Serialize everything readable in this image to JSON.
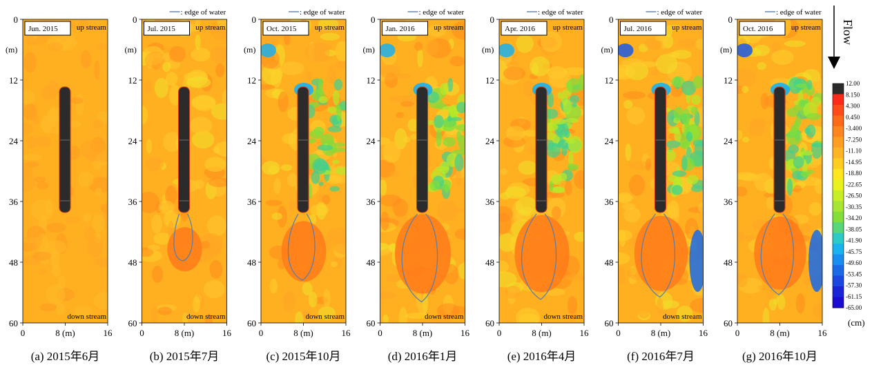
{
  "figure": {
    "flow_label": "Flow",
    "unit_label": "(cm)",
    "axis_unit_label": "(m)",
    "x_axis_mid_label": "8 (m)",
    "legend_line_label": ": edge of water",
    "upstream_label": "up stream",
    "downstream_label": "down stream"
  },
  "colorbar": {
    "ticks": [
      "12.00",
      "8.150",
      "4.300",
      "0.450",
      "-3.400",
      "-7.250",
      "-11.10",
      "-14.95",
      "-18.80",
      "-22.65",
      "-26.50",
      "-30.35",
      "-34.20",
      "-38.05",
      "-41.90",
      "-45.75",
      "-49.60",
      "-53.45",
      "-57.30",
      "-61.15",
      "-65.00"
    ],
    "colors": [
      "#2b2b2b",
      "#ff2a1a",
      "#ff4a1a",
      "#ff6a1a",
      "#ff861e",
      "#ff9e22",
      "#ffb426",
      "#ffcc22",
      "#ffe61e",
      "#eaf21e",
      "#c8ee28",
      "#a6e632",
      "#84de3a",
      "#58d67a",
      "#2ecac8",
      "#1cb2ee",
      "#1a8ef0",
      "#1a6ae8",
      "#1a48e0",
      "#1a26d6",
      "#1a0cd0"
    ]
  },
  "chart_data": [
    {
      "type": "heatmap",
      "panel": "(a)",
      "date_box": "Jun. 2015",
      "caption": "(a) 2015年6月",
      "xlim": [
        0,
        16
      ],
      "ylim": [
        0,
        60
      ],
      "x_ticks": [
        "0",
        "8 (m)",
        "16"
      ],
      "y_ticks": [
        "0",
        "12",
        "24",
        "36",
        "48",
        "60"
      ],
      "scour_region": false,
      "show_edge_legend": false,
      "show_downstream": true
    },
    {
      "type": "heatmap",
      "panel": "(b)",
      "date_box": "Jul. 2015",
      "caption": "(b) 2015年7月",
      "xlim": [
        0,
        16
      ],
      "ylim": [
        0,
        60
      ],
      "x_ticks": [
        "0",
        "8 (m)",
        "16"
      ],
      "y_ticks": [
        "0",
        "12",
        "24",
        "36",
        "48",
        "60"
      ],
      "scour_region": true,
      "show_edge_legend": true,
      "show_downstream": true
    },
    {
      "type": "heatmap",
      "panel": "(c)",
      "date_box": "Oct. 2015",
      "caption": "(c) 2015年10月",
      "xlim": [
        0,
        16
      ],
      "ylim": [
        0,
        60
      ],
      "x_ticks": [
        "0",
        "8 (m)",
        "16"
      ],
      "y_ticks": [
        "0",
        "12",
        "24",
        "36",
        "48",
        "60"
      ],
      "scour_region": true,
      "show_edge_legend": true,
      "show_downstream": true
    },
    {
      "type": "heatmap",
      "panel": "(d)",
      "date_box": "Jan. 2016",
      "caption": "(d) 2016年1月",
      "xlim": [
        0,
        16
      ],
      "ylim": [
        0,
        60
      ],
      "x_ticks": [
        "0",
        "8 (m)",
        "16"
      ],
      "y_ticks": [
        "0",
        "12",
        "24",
        "36",
        "48",
        "60"
      ],
      "scour_region": true,
      "show_edge_legend": true,
      "show_downstream": true
    },
    {
      "type": "heatmap",
      "panel": "(e)",
      "date_box": "Apr. 2016",
      "caption": "(e) 2016年4月",
      "xlim": [
        0,
        16
      ],
      "ylim": [
        0,
        60
      ],
      "x_ticks": [
        "0",
        "8 (m)",
        "16"
      ],
      "y_ticks": [
        "0",
        "12",
        "24",
        "36",
        "48",
        "60"
      ],
      "scour_region": true,
      "show_edge_legend": true,
      "show_downstream": true
    },
    {
      "type": "heatmap",
      "panel": "(f)",
      "date_box": "Jul. 2016",
      "caption": "(f) 2016年7月",
      "xlim": [
        0,
        16
      ],
      "ylim": [
        0,
        60
      ],
      "x_ticks": [
        "0",
        "8 (m)",
        "16"
      ],
      "y_ticks": [
        "0",
        "12",
        "24",
        "36",
        "48",
        "60"
      ],
      "scour_region": true,
      "show_edge_legend": true,
      "show_downstream": true
    },
    {
      "type": "heatmap",
      "panel": "(g)",
      "date_box": "Oct. 2016",
      "caption": "(g) 2016年10月",
      "xlim": [
        0,
        16
      ],
      "ylim": [
        0,
        60
      ],
      "x_ticks": [
        "0",
        "8 (m)",
        "16"
      ],
      "y_ticks": [
        "0",
        "12",
        "24",
        "36",
        "48",
        "60"
      ],
      "scour_region": true,
      "show_edge_legend": true,
      "show_downstream": false
    }
  ]
}
